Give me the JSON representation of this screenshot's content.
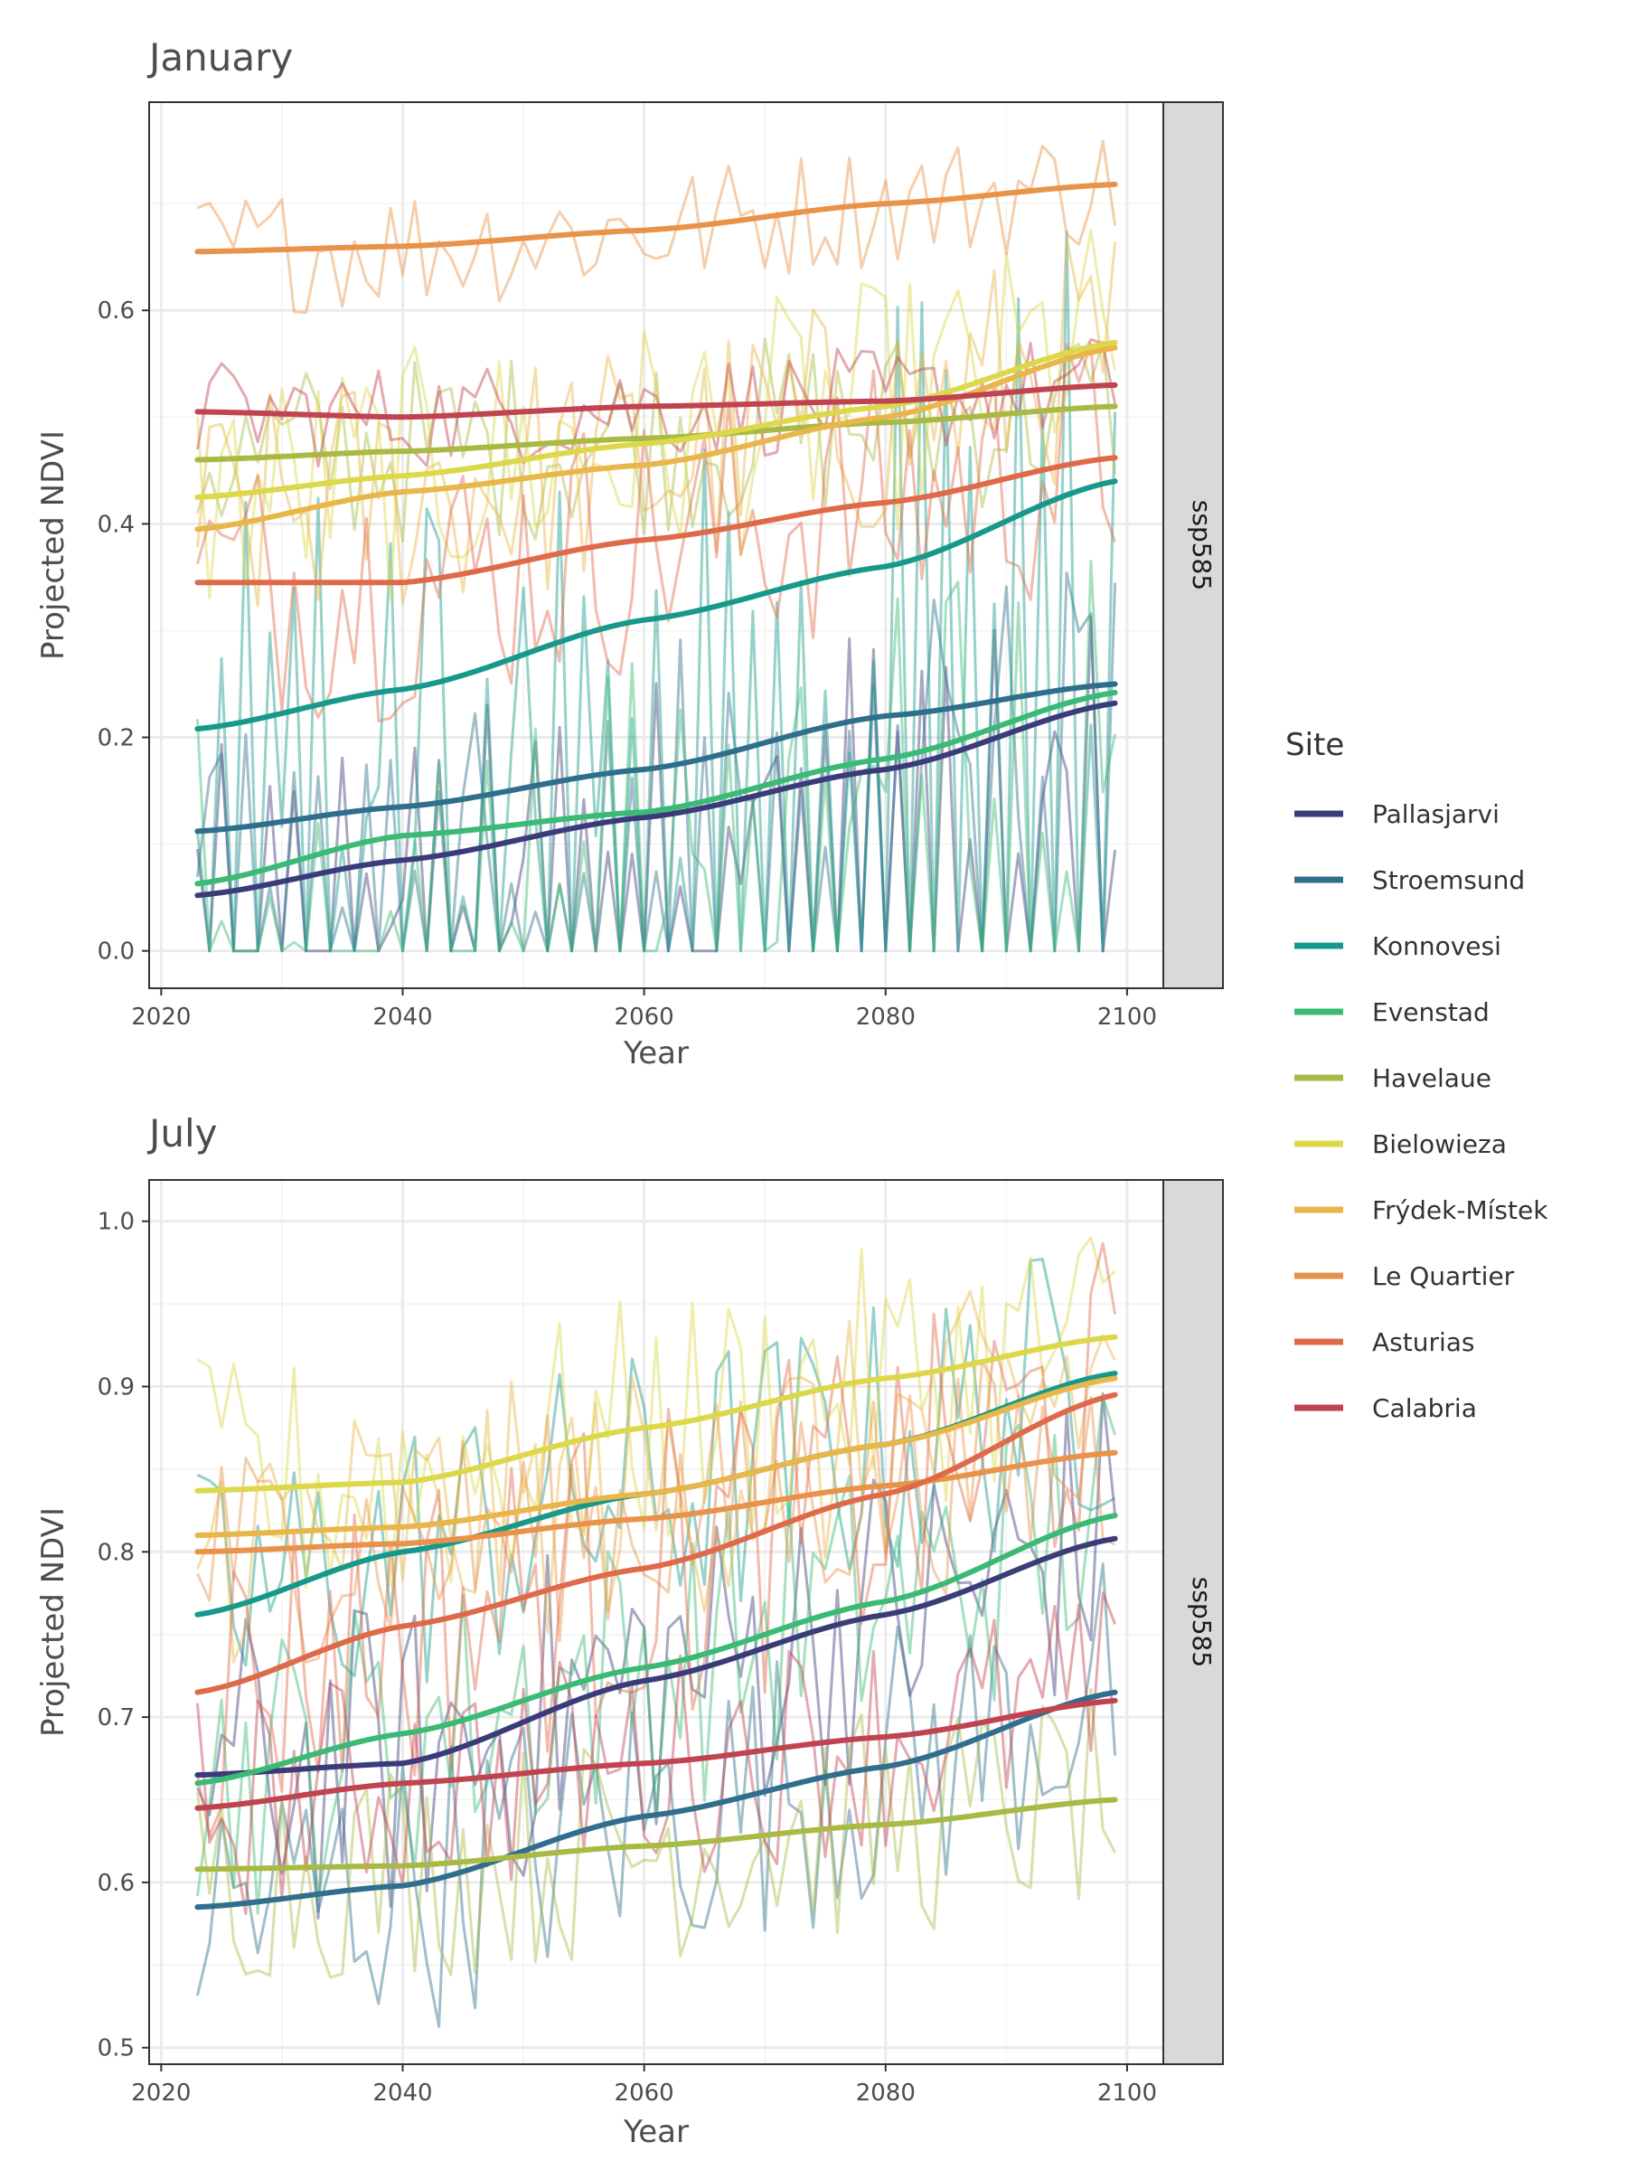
{
  "legend": {
    "title": "Site",
    "entries": [
      {
        "name": "Pallasjarvi",
        "color": "#3b3b7a"
      },
      {
        "name": "Stroemsund",
        "color": "#2f6e8c"
      },
      {
        "name": "Konnovesi",
        "color": "#16998a"
      },
      {
        "name": "Evenstad",
        "color": "#3aba74"
      },
      {
        "name": "Havelaue",
        "color": "#a9ba44"
      },
      {
        "name": "Bielowieza",
        "color": "#dcd84a"
      },
      {
        "name": "Frýdek-Místek",
        "color": "#e8b64a"
      },
      {
        "name": "Le Quartier",
        "color": "#e8924a"
      },
      {
        "name": "Asturias",
        "color": "#df6a4a"
      },
      {
        "name": "Calabria",
        "color": "#c0434f"
      }
    ]
  },
  "chart_data": [
    {
      "type": "line",
      "title": "January",
      "facet": "ssp585",
      "xlabel": "Year",
      "ylabel": "Projected NDVI",
      "xlim": [
        2019,
        2103
      ],
      "ylim": [
        -0.035,
        0.795
      ],
      "x_ticks": [
        2020,
        2040,
        2060,
        2080,
        2100
      ],
      "y_ticks": [
        0.0,
        0.2,
        0.4,
        0.6
      ],
      "y_tick_labels": [
        "0.0",
        "0.2",
        "0.4",
        "0.6"
      ],
      "y_minor": [
        0.1,
        0.3,
        0.5,
        0.7
      ],
      "grid": true,
      "smooth_x": [
        2023,
        2040,
        2060,
        2080,
        2099
      ],
      "series": [
        {
          "name": "Pallasjarvi",
          "smooth": [
            0.052,
            0.085,
            0.125,
            0.17,
            0.232
          ],
          "raw_mean": 0.13,
          "raw_spread": 0.14,
          "zero_floor": true
        },
        {
          "name": "Stroemsund",
          "smooth": [
            0.112,
            0.135,
            0.17,
            0.22,
            0.25
          ],
          "raw_mean": 0.17,
          "raw_spread": 0.12,
          "zero_floor": true
        },
        {
          "name": "Konnovesi",
          "smooth": [
            0.208,
            0.245,
            0.31,
            0.36,
            0.44
          ],
          "raw_mean": 0.3,
          "raw_spread": 0.25,
          "zero_floor": true
        },
        {
          "name": "Evenstad",
          "smooth": [
            0.063,
            0.108,
            0.13,
            0.18,
            0.242
          ],
          "raw_mean": 0.14,
          "raw_spread": 0.16,
          "zero_floor": true
        },
        {
          "name": "Havelaue",
          "smooth": [
            0.46,
            0.468,
            0.48,
            0.495,
            0.51
          ],
          "raw_mean": 0.48,
          "raw_spread": 0.09,
          "zero_floor": false
        },
        {
          "name": "Bielowieza",
          "smooth": [
            0.425,
            0.445,
            0.475,
            0.51,
            0.57
          ],
          "raw_mean": 0.48,
          "raw_spread": 0.12,
          "zero_floor": false
        },
        {
          "name": "Frýdek-Místek",
          "smooth": [
            0.395,
            0.43,
            0.455,
            0.5,
            0.565
          ],
          "raw_mean": 0.46,
          "raw_spread": 0.12,
          "zero_floor": false
        },
        {
          "name": "Le Quartier",
          "smooth": [
            0.655,
            0.66,
            0.675,
            0.7,
            0.718
          ],
          "raw_mean": 0.68,
          "raw_spread": 0.06,
          "zero_floor": false
        },
        {
          "name": "Asturias",
          "smooth": [
            0.345,
            0.345,
            0.385,
            0.42,
            0.462
          ],
          "raw_mean": 0.39,
          "raw_spread": 0.13,
          "zero_floor": false
        },
        {
          "name": "Calabria",
          "smooth": [
            0.505,
            0.5,
            0.51,
            0.515,
            0.53
          ],
          "raw_mean": 0.51,
          "raw_spread": 0.05,
          "zero_floor": false
        }
      ]
    },
    {
      "type": "line",
      "title": "July",
      "facet": "ssp585",
      "xlabel": "Year",
      "ylabel": "Projected NDVI",
      "xlim": [
        2019,
        2103
      ],
      "ylim": [
        0.49,
        1.025
      ],
      "x_ticks": [
        2020,
        2040,
        2060,
        2080,
        2100
      ],
      "y_ticks": [
        0.5,
        0.6,
        0.7,
        0.8,
        0.9,
        1.0
      ],
      "y_tick_labels": [
        "0.5",
        "0.6",
        "0.7",
        "0.8",
        "0.9",
        "1.0"
      ],
      "y_minor": [
        0.55,
        0.65,
        0.75,
        0.85,
        0.95
      ],
      "grid": true,
      "smooth_x": [
        2023,
        2040,
        2060,
        2080,
        2099
      ],
      "series": [
        {
          "name": "Pallasjarvi",
          "smooth": [
            0.665,
            0.672,
            0.722,
            0.762,
            0.808
          ],
          "raw_mean": 0.73,
          "raw_spread": 0.1,
          "zero_floor": false
        },
        {
          "name": "Stroemsund",
          "smooth": [
            0.585,
            0.598,
            0.64,
            0.67,
            0.715
          ],
          "raw_mean": 0.64,
          "raw_spread": 0.09,
          "zero_floor": false
        },
        {
          "name": "Konnovesi",
          "smooth": [
            0.762,
            0.8,
            0.835,
            0.865,
            0.908
          ],
          "raw_mean": 0.83,
          "raw_spread": 0.09,
          "zero_floor": false
        },
        {
          "name": "Evenstad",
          "smooth": [
            0.66,
            0.69,
            0.73,
            0.77,
            0.822
          ],
          "raw_mean": 0.74,
          "raw_spread": 0.09,
          "zero_floor": false
        },
        {
          "name": "Havelaue",
          "smooth": [
            0.608,
            0.61,
            0.622,
            0.635,
            0.65
          ],
          "raw_mean": 0.62,
          "raw_spread": 0.07,
          "zero_floor": false
        },
        {
          "name": "Bielowieza",
          "smooth": [
            0.837,
            0.842,
            0.875,
            0.905,
            0.93
          ],
          "raw_mean": 0.88,
          "raw_spread": 0.08,
          "zero_floor": false
        },
        {
          "name": "Frýdek-Místek",
          "smooth": [
            0.81,
            0.815,
            0.835,
            0.865,
            0.905
          ],
          "raw_mean": 0.85,
          "raw_spread": 0.08,
          "zero_floor": false
        },
        {
          "name": "Le Quartier",
          "smooth": [
            0.8,
            0.805,
            0.82,
            0.84,
            0.86
          ],
          "raw_mean": 0.83,
          "raw_spread": 0.07,
          "zero_floor": false
        },
        {
          "name": "Asturias",
          "smooth": [
            0.715,
            0.755,
            0.79,
            0.835,
            0.895
          ],
          "raw_mean": 0.8,
          "raw_spread": 0.1,
          "zero_floor": false
        },
        {
          "name": "Calabria",
          "smooth": [
            0.645,
            0.66,
            0.672,
            0.688,
            0.71
          ],
          "raw_mean": 0.67,
          "raw_spread": 0.07,
          "zero_floor": false
        }
      ]
    }
  ]
}
